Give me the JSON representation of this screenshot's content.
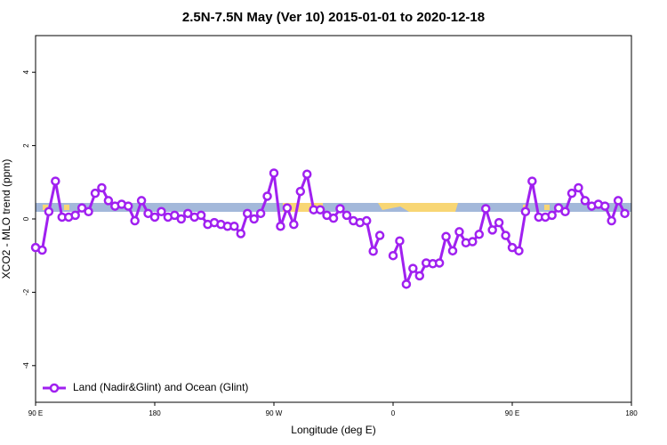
{
  "chart_data": {
    "type": "line",
    "title": "2.5N-7.5N May (Ver 10)   2015-01-01 to 2020-12-18",
    "xlabel": "Longitude (deg E)",
    "ylabel": "XCO2 - MLO trend (ppm)",
    "x": [
      90,
      95,
      100,
      105,
      110,
      115,
      120,
      125,
      130,
      135,
      140,
      145,
      150,
      155,
      160,
      165,
      170,
      175,
      180,
      185,
      190,
      195,
      200,
      205,
      210,
      215,
      220,
      225,
      230,
      235,
      240,
      245,
      250,
      255,
      260,
      265,
      270,
      275,
      280,
      285,
      290,
      295,
      300,
      305,
      310,
      315,
      320,
      325,
      330,
      335,
      340,
      345,
      350,
      355,
      360,
      365,
      370,
      375,
      380,
      385,
      390,
      395,
      400,
      405,
      410,
      415,
      420,
      425,
      430,
      435,
      440,
      445,
      450,
      455,
      460,
      465,
      470,
      475,
      480,
      485,
      490,
      495,
      500,
      505,
      510,
      515,
      520,
      525,
      530,
      535
    ],
    "series": [
      {
        "name": "Land (Nadir&Glint) and Ocean (Glint)",
        "color": "#a020f0",
        "values": [
          -0.78,
          -0.85,
          0.2,
          1.03,
          0.05,
          0.05,
          0.1,
          0.3,
          0.2,
          0.7,
          0.85,
          0.5,
          0.35,
          0.4,
          0.35,
          -0.05,
          0.5,
          0.15,
          0.05,
          0.2,
          0.05,
          0.1,
          0,
          0.15,
          0.05,
          0.1,
          -0.15,
          -0.1,
          -0.15,
          -0.2,
          -0.2,
          -0.4,
          0.15,
          0,
          0.15,
          0.62,
          1.25,
          -0.2,
          0.3,
          -0.15,
          0.75,
          1.22,
          0.25,
          0.25,
          0.1,
          0.02,
          0.28,
          0.1,
          -0.05,
          -0.1,
          -0.05,
          -0.88,
          -0.45,
          null,
          -1.0,
          -0.6,
          -1.78,
          -1.35,
          -1.55,
          -1.2,
          -1.22,
          -1.2,
          -0.48,
          -0.87,
          -0.35,
          -0.65,
          -0.62,
          -0.42,
          0.28,
          -0.3,
          -0.1,
          -0.45,
          -0.78,
          -0.87,
          0.2,
          1.03,
          0.05,
          0.05,
          0.1,
          0.3,
          0.2,
          0.7,
          0.85,
          0.5,
          0.35,
          0.4,
          0.35,
          -0.05,
          0.5,
          0.15
        ]
      }
    ],
    "xlim": [
      90,
      540
    ],
    "xticks": [
      {
        "value": 90,
        "label": "90 E"
      },
      {
        "value": 180,
        "label": "180"
      },
      {
        "value": 270,
        "label": "90 W"
      },
      {
        "value": 360,
        "label": "0"
      },
      {
        "value": 450,
        "label": "90 E"
      },
      {
        "value": 540,
        "label": "180"
      }
    ],
    "ylim": [
      -5,
      5
    ],
    "yticks": [
      -4,
      -2,
      0,
      2,
      4
    ],
    "legend": "bottom-left"
  }
}
